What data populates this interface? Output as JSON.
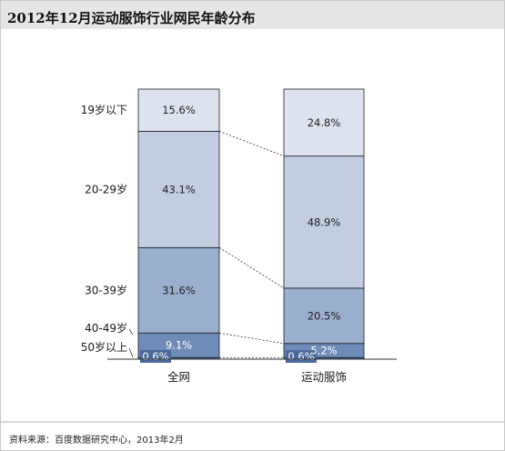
{
  "header": {
    "title": "2012年12月运动服饰行业网民年龄分布"
  },
  "footer": {
    "source": "资料来源：百度数据研究中心，2013年2月"
  },
  "colors": {
    "header_bar": "#e6e6e6",
    "header_rule": "#d9d9d9",
    "segments": [
      "#4a6a9c",
      "#6f8bb8",
      "#9aaecd",
      "#c3cde0",
      "#dde3ee"
    ],
    "segment_text_light": "#ffffff",
    "segment_text_dark": "#222222"
  },
  "chart_data": {
    "type": "bar",
    "stacked": true,
    "categories": [
      "全网",
      "运动服饰"
    ],
    "series": [
      {
        "name": "50岁以上",
        "values": [
          0.6,
          0.6
        ],
        "labels": [
          "0.6%",
          "0.6%"
        ]
      },
      {
        "name": "40-49岁",
        "values": [
          9.1,
          5.2
        ],
        "labels": [
          "9.1%",
          "5.2%"
        ]
      },
      {
        "name": "30-39岁",
        "values": [
          31.6,
          20.5
        ],
        "labels": [
          "31.6%",
          "20.5%"
        ]
      },
      {
        "name": "20-29岁",
        "values": [
          43.1,
          48.9
        ],
        "labels": [
          "43.1%",
          "48.9%"
        ]
      },
      {
        "name": "19岁以下",
        "values": [
          15.6,
          24.8
        ],
        "labels": [
          "15.6%",
          "24.8%"
        ]
      }
    ],
    "ylim": [
      0,
      100
    ],
    "legend": "left",
    "grid": false
  }
}
